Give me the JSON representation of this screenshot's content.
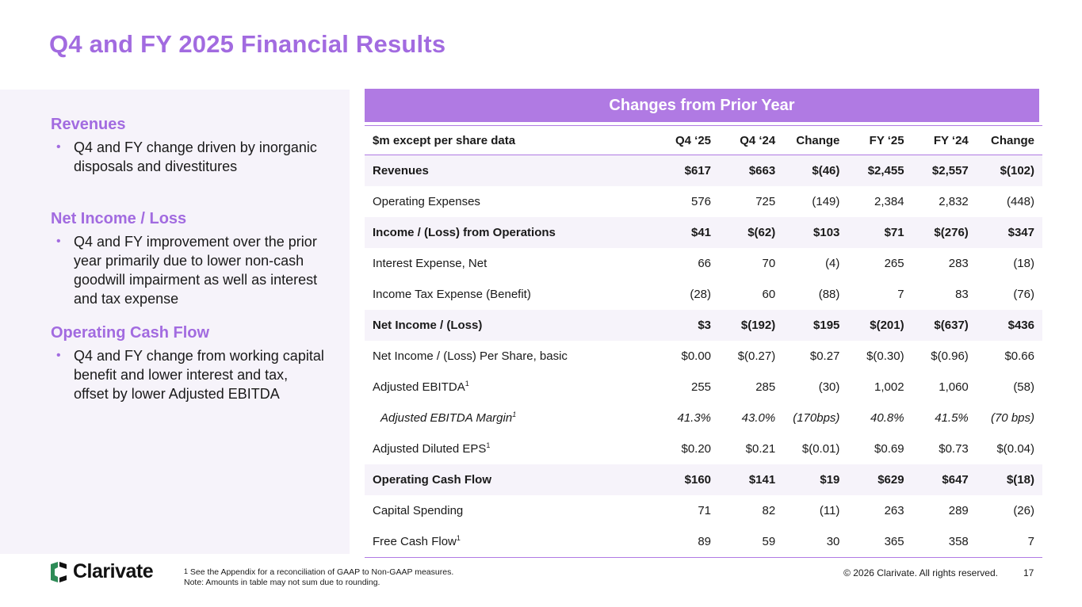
{
  "title": "Q4 and FY 2025 Financial Results",
  "sections": [
    {
      "heading": "Revenues",
      "bullet": "Q4 and FY change driven by inorganic disposals and divestitures"
    },
    {
      "heading": "Net Income / Loss",
      "bullet": "Q4 and FY improvement over the prior year primarily due to lower non-cash goodwill impairment as well as interest and tax expense"
    },
    {
      "heading": "Operating Cash Flow",
      "bullet": "Q4 and FY change from working capital benefit and lower interest and tax, offset by lower Adjusted EBITDA"
    }
  ],
  "table": {
    "banner": "Changes from Prior Year",
    "headers": [
      "$m except per share data",
      "Q4 ‘25",
      "Q4 ‘24",
      "Change",
      "FY ‘25",
      "FY ‘24",
      "Change"
    ],
    "rows": [
      {
        "label": "Revenues",
        "sup": "",
        "values": [
          "$617",
          "$663",
          "$(46)",
          "$2,455",
          "$2,557",
          "$(102)"
        ]
      },
      {
        "label": "Operating Expenses",
        "sup": "",
        "values": [
          "576",
          "725",
          "(149)",
          "2,384",
          "2,832",
          "(448)"
        ]
      },
      {
        "label": "Income / (Loss) from Operations",
        "sup": "",
        "values": [
          "$41",
          "$(62)",
          "$103",
          "$71",
          "$(276)",
          "$347"
        ]
      },
      {
        "label": "Interest Expense, Net",
        "sup": "",
        "values": [
          "66",
          "70",
          "(4)",
          "265",
          "283",
          "(18)"
        ]
      },
      {
        "label": "Income Tax Expense (Benefit)",
        "sup": "",
        "values": [
          "(28)",
          "60",
          "(88)",
          "7",
          "83",
          "(76)"
        ]
      },
      {
        "label": "Net Income / (Loss)",
        "sup": "",
        "values": [
          "$3",
          "$(192)",
          "$195",
          "$(201)",
          "$(637)",
          "$436"
        ]
      },
      {
        "label": "Net Income / (Loss) Per Share, basic",
        "sup": "",
        "values": [
          "$0.00",
          "$(0.27)",
          "$0.27",
          "$(0.30)",
          "$(0.96)",
          "$0.66"
        ]
      },
      {
        "label": "Adjusted EBITDA",
        "sup": "1",
        "values": [
          "255",
          "285",
          "(30)",
          "1,002",
          "1,060",
          "(58)"
        ]
      },
      {
        "label": "Adjusted EBITDA Margin",
        "sup": "1",
        "values": [
          "41.3%",
          "43.0%",
          "(170bps)",
          "40.8%",
          "41.5%",
          "(70 bps)"
        ]
      },
      {
        "label": "Adjusted Diluted EPS",
        "sup": "1",
        "values": [
          "$0.20",
          "$0.21",
          "$(0.01)",
          "$0.69",
          "$0.73",
          "$(0.04)"
        ]
      },
      {
        "label": "Operating Cash Flow",
        "sup": "",
        "values": [
          "$160",
          "$141",
          "$19",
          "$629",
          "$647",
          "$(18)"
        ]
      },
      {
        "label": "Capital Spending",
        "sup": "",
        "values": [
          "71",
          "82",
          "(11)",
          "263",
          "289",
          "(26)"
        ]
      },
      {
        "label": "Free Cash Flow",
        "sup": "1",
        "values": [
          "89",
          "59",
          "30",
          "365",
          "358",
          "7"
        ]
      }
    ]
  },
  "footer": {
    "logo_text": "Clarivate",
    "footnote_sup": "1",
    "footnote_line1": " See the Appendix for a reconciliation of GAAP to Non-GAAP measures.",
    "footnote_line2": "Note: Amounts in table may not sum due to rounding.",
    "copyright": "© 2026 Clarivate. All rights reserved.",
    "page_number": "17"
  },
  "colors": {
    "accent": "#a26be0",
    "banner": "#b07ae3",
    "panel": "#f6f3fa",
    "logo_green": "#2e8b57"
  }
}
